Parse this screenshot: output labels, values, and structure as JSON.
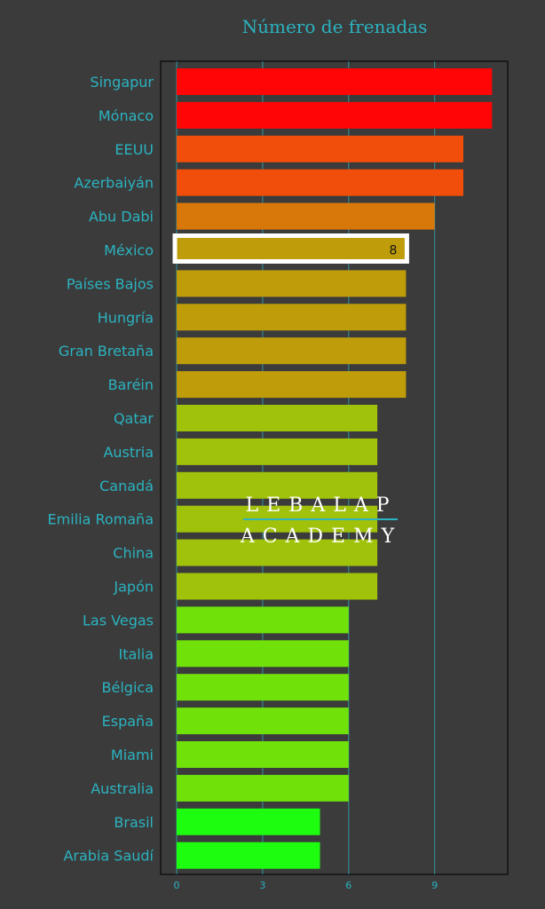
{
  "watermark": {
    "line1": "LEBALAP",
    "line2": "ACADEMY"
  },
  "colors": {
    "background": "#3b3b3b",
    "plot_background": "#3b3b3b",
    "accent": "#2bb3c0",
    "highlight_border": "#ffffff"
  },
  "chart_data": {
    "type": "bar",
    "orientation": "horizontal",
    "title": "Número de frenadas",
    "xlabel": "",
    "ylabel": "",
    "categories": [
      "Singapur",
      "Mónaco",
      "EEUU",
      "Azerbaiyán",
      "Abu Dabi",
      "México",
      "Países Bajos",
      "Hungría",
      "Gran Bretaña",
      "Baréin",
      "Qatar",
      "Austria",
      "Canadá",
      "Emilia Romaña",
      "China",
      "Japón",
      "Las Vegas",
      "Italia",
      "Bélgica",
      "España",
      "Miami",
      "Australia",
      "Brasil",
      "Arabia Saudí"
    ],
    "values": [
      11,
      11,
      10,
      10,
      9,
      8,
      8,
      8,
      8,
      8,
      7,
      7,
      7,
      7,
      7,
      7,
      6,
      6,
      6,
      6,
      6,
      6,
      5,
      5
    ],
    "bar_colors": [
      "#ff0505",
      "#ff0505",
      "#f04e0a",
      "#f04e0a",
      "#d9780a",
      "#bf9d0a",
      "#bf9d0a",
      "#bf9d0a",
      "#bf9d0a",
      "#bf9d0a",
      "#a1c20a",
      "#a1c20a",
      "#a1c20a",
      "#a1c20a",
      "#a1c20a",
      "#a1c20a",
      "#70e20a",
      "#70e20a",
      "#70e20a",
      "#70e20a",
      "#70e20a",
      "#70e20a",
      "#1dfd0f",
      "#1dfd0f"
    ],
    "xlim": [
      0,
      11.6
    ],
    "xticks": [
      0,
      3,
      6,
      9
    ],
    "grid": true,
    "highlight": {
      "category": "México",
      "value_label": "8"
    },
    "legend": "none"
  }
}
